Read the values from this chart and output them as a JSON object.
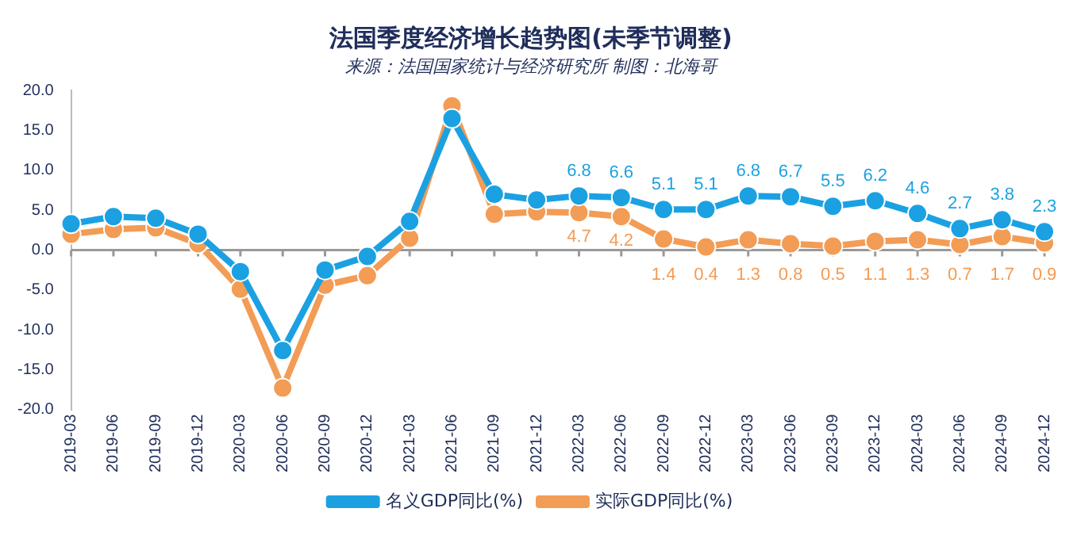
{
  "chart_data": {
    "type": "line",
    "title": "法国季度经济增长趋势图(未季节调整)",
    "subtitle": "来源：法国国家统计与经济研究所 制图：北海哥",
    "categories": [
      "2019-03",
      "2019-06",
      "2019-09",
      "2019-12",
      "2020-03",
      "2020-06",
      "2020-09",
      "2020-12",
      "2021-03",
      "2021-06",
      "2021-09",
      "2021-12",
      "2022-03",
      "2022-06",
      "2022-09",
      "2022-12",
      "2023-03",
      "2023-06",
      "2023-09",
      "2023-12",
      "2024-03",
      "2024-06",
      "2024-09",
      "2024-12"
    ],
    "series": [
      {
        "name": "名义GDP同比(%)",
        "color": "#1ba1e2",
        "values": [
          3.3,
          4.2,
          4.0,
          2.0,
          -2.7,
          -12.6,
          -2.5,
          -0.8,
          3.6,
          16.5,
          7.0,
          6.3,
          6.8,
          6.6,
          5.1,
          5.1,
          6.8,
          6.7,
          5.5,
          6.2,
          4.6,
          2.7,
          3.8,
          2.3
        ],
        "value_labels": [
          null,
          null,
          null,
          null,
          null,
          null,
          null,
          null,
          null,
          null,
          null,
          null,
          "6.8",
          "6.6",
          "5.1",
          "5.1",
          "6.8",
          "6.7",
          "5.5",
          "6.2",
          "4.6",
          "2.7",
          "3.8",
          "2.3"
        ]
      },
      {
        "name": "实际GDP同比(%)",
        "color": "#f39c55",
        "values": [
          2.0,
          2.6,
          2.8,
          0.8,
          -4.9,
          -17.3,
          -4.4,
          -3.2,
          1.5,
          18.1,
          4.5,
          4.8,
          4.7,
          4.2,
          1.4,
          0.4,
          1.3,
          0.8,
          0.5,
          1.1,
          1.3,
          0.7,
          1.7,
          0.9
        ],
        "value_labels": [
          null,
          null,
          null,
          null,
          null,
          null,
          null,
          null,
          null,
          null,
          null,
          null,
          "4.7",
          "4.2",
          "1.4",
          "0.4",
          "1.3",
          "0.8",
          "0.5",
          "1.1",
          "1.3",
          "0.7",
          "1.7",
          "0.9"
        ]
      }
    ],
    "ylim": [
      -20,
      20
    ],
    "yticks": [
      {
        "value": -20,
        "label": "-20.0"
      },
      {
        "value": -15,
        "label": "-15.0"
      },
      {
        "value": -10,
        "label": "-10.0"
      },
      {
        "value": -5,
        "label": "-5.0"
      },
      {
        "value": 0,
        "label": "0.0"
      },
      {
        "value": 5,
        "label": "5.0"
      },
      {
        "value": 10,
        "label": "10.0"
      },
      {
        "value": 15,
        "label": "15.0"
      },
      {
        "value": 20,
        "label": "20.0"
      }
    ],
    "ref_lines": [
      {
        "axis": "y",
        "value": 0,
        "color": "#999999"
      }
    ],
    "grid": false,
    "legend": "bottom",
    "marker": "circle",
    "line_style": "solid"
  }
}
